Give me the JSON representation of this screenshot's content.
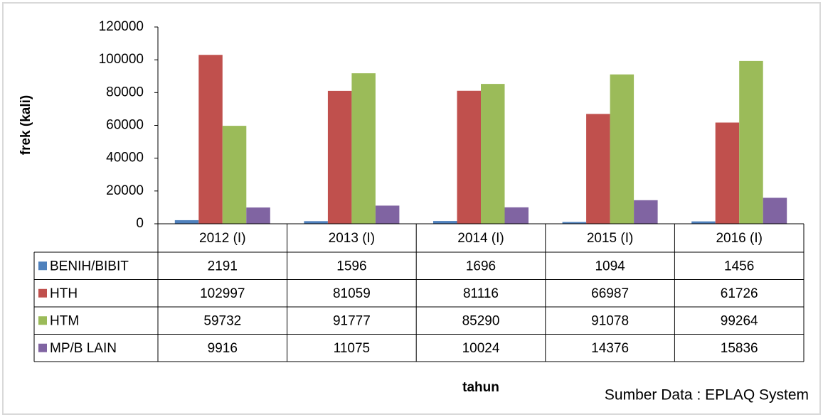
{
  "chart_data": {
    "type": "bar",
    "y_label": "frek (kali)",
    "x_label": "tahun",
    "source": "Sumber Data : EPLAQ System",
    "categories": [
      "2012 (I)",
      "2013 (I)",
      "2014 (I)",
      "2015 (I)",
      "2016 (I)"
    ],
    "series": [
      {
        "name": "BENIH/BIBIT",
        "color": "#4f81bd",
        "values": [
          2191,
          1596,
          1696,
          1094,
          1456
        ]
      },
      {
        "name": "HTH",
        "color": "#c0504d",
        "values": [
          102997,
          81059,
          81116,
          66987,
          61726
        ]
      },
      {
        "name": "HTM",
        "color": "#9bbb59",
        "values": [
          59732,
          91777,
          85290,
          91078,
          99264
        ]
      },
      {
        "name": "MP/B LAIN",
        "color": "#8064a2",
        "values": [
          9916,
          11075,
          10024,
          14376,
          15836
        ]
      }
    ],
    "ylim": [
      0,
      120000
    ],
    "yticks": [
      0,
      20000,
      40000,
      60000,
      80000,
      100000,
      120000
    ],
    "grid": false
  }
}
